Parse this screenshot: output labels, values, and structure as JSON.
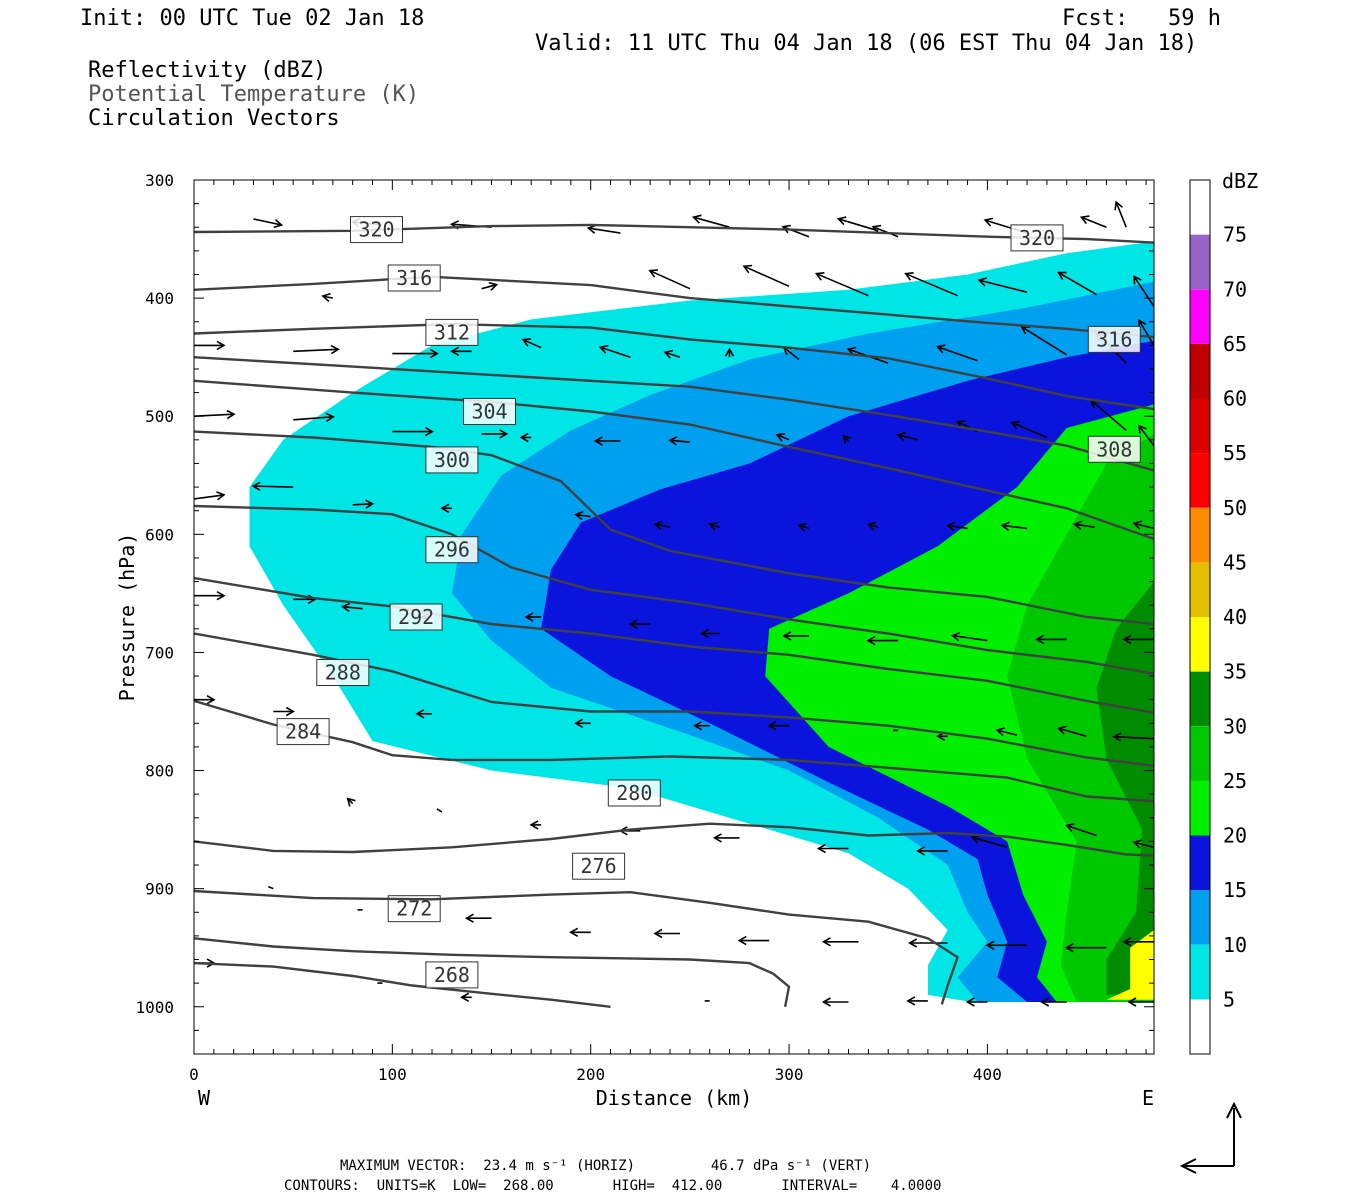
{
  "header": {
    "init": "Init: 00 UTC Tue 02 Jan 18",
    "fcst": "Fcst:   59 h",
    "valid": "Valid: 11 UTC Thu 04 Jan 18 (06 EST Thu 04 Jan 18)",
    "field1": "Reflectivity (dBZ)",
    "field2": "Potential Temperature (K)",
    "field3": "Circulation Vectors"
  },
  "footer": {
    "line1": "MAXIMUM VECTOR:  23.4 m s⁻¹ (HORIZ)         46.7 dPa s⁻¹ (VERT)",
    "line2": "CONTOURS:  UNITS=K  LOW=  268.00       HIGH=  412.00       INTERVAL=    4.0000"
  },
  "colors": {
    "dbz5": "#00e6e6",
    "dbz10": "#00a0f0",
    "dbz15": "#0a14dc",
    "dbz20": "#00f000",
    "dbz25": "#00c800",
    "dbz30": "#008c00",
    "dbz35": "#ffff00",
    "dbz40": "#e6be00",
    "dbz45": "#ff8c00",
    "dbz50": "#ff0000",
    "dbz55": "#dc0000",
    "dbz60": "#be0000",
    "dbz65": "#ff00ff",
    "dbz70": "#9664c8",
    "contour": "#404040"
  },
  "chart_data": {
    "type": "cross-section",
    "xlabel": "Distance (km)",
    "ylabel": "Pressure (hPa)",
    "x_ticks": [
      "0",
      "100",
      "200",
      "300",
      "400"
    ],
    "y_ticks": [
      "300",
      "400",
      "500",
      "600",
      "700",
      "800",
      "900",
      "1000"
    ],
    "xlim": [
      0,
      484
    ],
    "ylim": [
      1040,
      300
    ],
    "y_scale": "linear (pressure, increasing downward)",
    "left_end_label": "W",
    "right_end_label": "E",
    "colorbar": {
      "title": "dBZ",
      "levels": [
        "5",
        "10",
        "15",
        "20",
        "25",
        "30",
        "35",
        "40",
        "45",
        "50",
        "55",
        "60",
        "65",
        "70",
        "75"
      ]
    },
    "theta_contours": [
      {
        "label": "268",
        "points": [
          [
            0,
            963
          ],
          [
            40,
            966
          ],
          [
            80,
            974
          ],
          [
            110,
            982
          ],
          [
            150,
            989
          ],
          [
            180,
            994
          ],
          [
            200,
            998
          ],
          [
            210,
            1000
          ]
        ],
        "labels_at": [
          [
            130,
            973
          ]
        ]
      },
      {
        "label": "272",
        "points": [
          [
            0,
            942
          ],
          [
            40,
            949
          ],
          [
            80,
            953
          ],
          [
            130,
            956
          ],
          [
            180,
            958
          ],
          [
            250,
            960
          ],
          [
            280,
            963
          ],
          [
            292,
            972
          ],
          [
            300,
            983
          ],
          [
            298,
            1000
          ]
        ],
        "labels_at": [
          [
            111,
            917
          ]
        ]
      },
      {
        "label": "276",
        "points": [
          [
            0,
            902
          ],
          [
            60,
            908
          ],
          [
            120,
            909
          ],
          [
            180,
            905
          ],
          [
            220,
            903
          ],
          [
            260,
            912
          ],
          [
            300,
            922
          ],
          [
            340,
            928
          ],
          [
            370,
            942
          ],
          [
            385,
            958
          ],
          [
            380,
            982
          ],
          [
            377,
            998
          ]
        ],
        "labels_at": [
          [
            204,
            881
          ]
        ]
      },
      {
        "label": "280",
        "points": [
          [
            0,
            860
          ],
          [
            40,
            868
          ],
          [
            80,
            869
          ],
          [
            130,
            865
          ],
          [
            180,
            858
          ],
          [
            220,
            850
          ],
          [
            260,
            845
          ],
          [
            300,
            848
          ],
          [
            340,
            855
          ],
          [
            380,
            853
          ],
          [
            410,
            856
          ],
          [
            440,
            863
          ],
          [
            470,
            871
          ],
          [
            484,
            872
          ]
        ],
        "labels_at": [
          [
            222,
            819
          ]
        ]
      },
      {
        "label": "284",
        "points": [
          [
            0,
            741
          ],
          [
            40,
            761
          ],
          [
            80,
            776
          ],
          [
            100,
            787
          ],
          [
            130,
            791
          ],
          [
            180,
            791
          ],
          [
            240,
            788
          ],
          [
            300,
            791
          ],
          [
            360,
            799
          ],
          [
            410,
            806
          ],
          [
            450,
            822
          ],
          [
            484,
            826
          ]
        ],
        "labels_at": [
          [
            55,
            767
          ]
        ]
      },
      {
        "label": "288",
        "points": [
          [
            0,
            684
          ],
          [
            60,
            702
          ],
          [
            100,
            716
          ],
          [
            150,
            742
          ],
          [
            200,
            750
          ],
          [
            250,
            750
          ],
          [
            300,
            755
          ],
          [
            350,
            762
          ],
          [
            400,
            773
          ],
          [
            450,
            789
          ],
          [
            484,
            796
          ]
        ],
        "labels_at": [
          [
            75,
            717
          ]
        ]
      },
      {
        "label": "292",
        "points": [
          [
            0,
            637
          ],
          [
            60,
            654
          ],
          [
            100,
            661
          ],
          [
            150,
            676
          ],
          [
            200,
            684
          ],
          [
            250,
            695
          ],
          [
            300,
            702
          ],
          [
            350,
            714
          ],
          [
            400,
            724
          ],
          [
            450,
            741
          ],
          [
            484,
            751
          ]
        ],
        "labels_at": [
          [
            112,
            670
          ]
        ]
      },
      {
        "label": "296",
        "points": [
          [
            0,
            576
          ],
          [
            60,
            579
          ],
          [
            100,
            583
          ],
          [
            130,
            600
          ],
          [
            160,
            628
          ],
          [
            200,
            647
          ],
          [
            250,
            658
          ],
          [
            300,
            672
          ],
          [
            350,
            684
          ],
          [
            400,
            698
          ],
          [
            450,
            708
          ],
          [
            484,
            718
          ]
        ],
        "labels_at": [
          [
            130,
            613
          ]
        ]
      },
      {
        "label": "300",
        "points": [
          [
            0,
            513
          ],
          [
            60,
            518
          ],
          [
            120,
            526
          ],
          [
            150,
            533
          ],
          [
            185,
            555
          ],
          [
            210,
            596
          ],
          [
            240,
            614
          ],
          [
            300,
            633
          ],
          [
            350,
            645
          ],
          [
            400,
            653
          ],
          [
            450,
            670
          ],
          [
            484,
            676
          ]
        ],
        "labels_at": [
          [
            130,
            537
          ]
        ]
      },
      {
        "label": "304",
        "points": [
          [
            0,
            470
          ],
          [
            80,
            480
          ],
          [
            150,
            488
          ],
          [
            200,
            496
          ],
          [
            250,
            507
          ],
          [
            300,
            526
          ],
          [
            350,
            544
          ],
          [
            400,
            563
          ],
          [
            440,
            578
          ],
          [
            484,
            604
          ]
        ],
        "labels_at": [
          [
            149,
            496
          ]
        ]
      },
      {
        "label": "308",
        "points": [
          [
            0,
            450
          ],
          [
            80,
            458
          ],
          [
            150,
            465
          ],
          [
            250,
            475
          ],
          [
            300,
            486
          ],
          [
            350,
            499
          ],
          [
            400,
            513
          ],
          [
            440,
            525
          ],
          [
            484,
            546
          ]
        ],
        "labels_at": [
          [
            464,
            528
          ]
        ]
      },
      {
        "label": "312",
        "points": [
          [
            0,
            430
          ],
          [
            60,
            426
          ],
          [
            130,
            422
          ],
          [
            200,
            425
          ],
          [
            250,
            435
          ],
          [
            300,
            442
          ],
          [
            350,
            451
          ],
          [
            400,
            468
          ],
          [
            440,
            483
          ],
          [
            484,
            494
          ]
        ],
        "labels_at": [
          [
            130,
            429
          ]
        ]
      },
      {
        "label": "316",
        "points": [
          [
            0,
            393
          ],
          [
            60,
            388
          ],
          [
            120,
            382
          ],
          [
            200,
            389
          ],
          [
            250,
            400
          ],
          [
            300,
            407
          ],
          [
            350,
            414
          ],
          [
            400,
            421
          ],
          [
            440,
            426
          ],
          [
            484,
            433
          ]
        ],
        "labels_at": [
          [
            111,
            383
          ],
          [
            464,
            435
          ]
        ]
      },
      {
        "label": "320",
        "points": [
          [
            0,
            344
          ],
          [
            80,
            343
          ],
          [
            150,
            339
          ],
          [
            200,
            338
          ],
          [
            300,
            342
          ],
          [
            400,
            348
          ],
          [
            450,
            350
          ],
          [
            484,
            353
          ]
        ],
        "labels_at": [
          [
            92,
            342
          ],
          [
            425,
            349
          ]
        ]
      }
    ]
  }
}
